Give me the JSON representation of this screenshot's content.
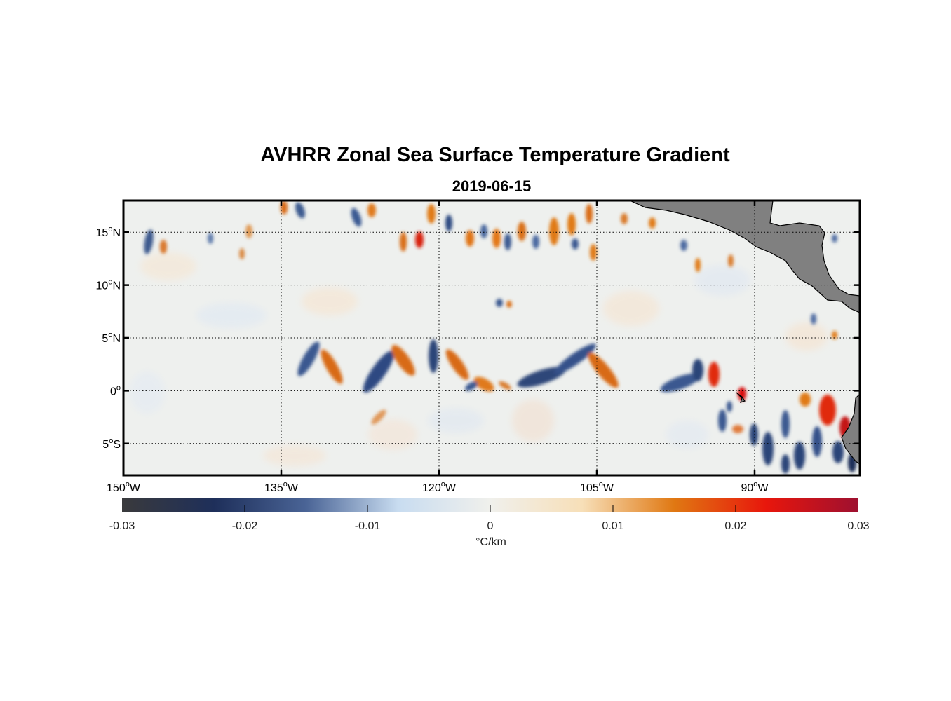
{
  "title": "AVHRR Zonal Sea Surface Temperature Gradient",
  "subtitle": "2019-06-15",
  "map": {
    "lon_range": [
      -150,
      -80
    ],
    "lat_range": [
      -8,
      18
    ],
    "grid": "dotted",
    "x_ticks": [
      {
        "value": -150,
        "deg": "150",
        "hemi": "W"
      },
      {
        "value": -135,
        "deg": "135",
        "hemi": "W"
      },
      {
        "value": -120,
        "deg": "120",
        "hemi": "W"
      },
      {
        "value": -105,
        "deg": "105",
        "hemi": "W"
      },
      {
        "value": -90,
        "deg": "90",
        "hemi": "W"
      }
    ],
    "y_ticks": [
      {
        "value": 15,
        "deg": "15",
        "hemi": "N"
      },
      {
        "value": 10,
        "deg": "10",
        "hemi": "N"
      },
      {
        "value": 5,
        "deg": "5",
        "hemi": "N"
      },
      {
        "value": 0,
        "deg": "0",
        "hemi": ""
      },
      {
        "value": -5,
        "deg": "5",
        "hemi": "S"
      }
    ],
    "land_color": "#808080",
    "coast_color": "#000000"
  },
  "colorbar": {
    "range": [
      -0.03,
      0.03
    ],
    "ticks": [
      "-0.03",
      "-0.02",
      "-0.01",
      "0",
      "0.01",
      "0.02",
      "0.03"
    ],
    "label": "°C/km",
    "colors": [
      "#3a3a3c",
      "#1e2f5a",
      "#4a6496",
      "#c8dcf0",
      "#f0f0ec",
      "#f7dfb8",
      "#e07812",
      "#e8160c",
      "#9e1030"
    ]
  }
}
